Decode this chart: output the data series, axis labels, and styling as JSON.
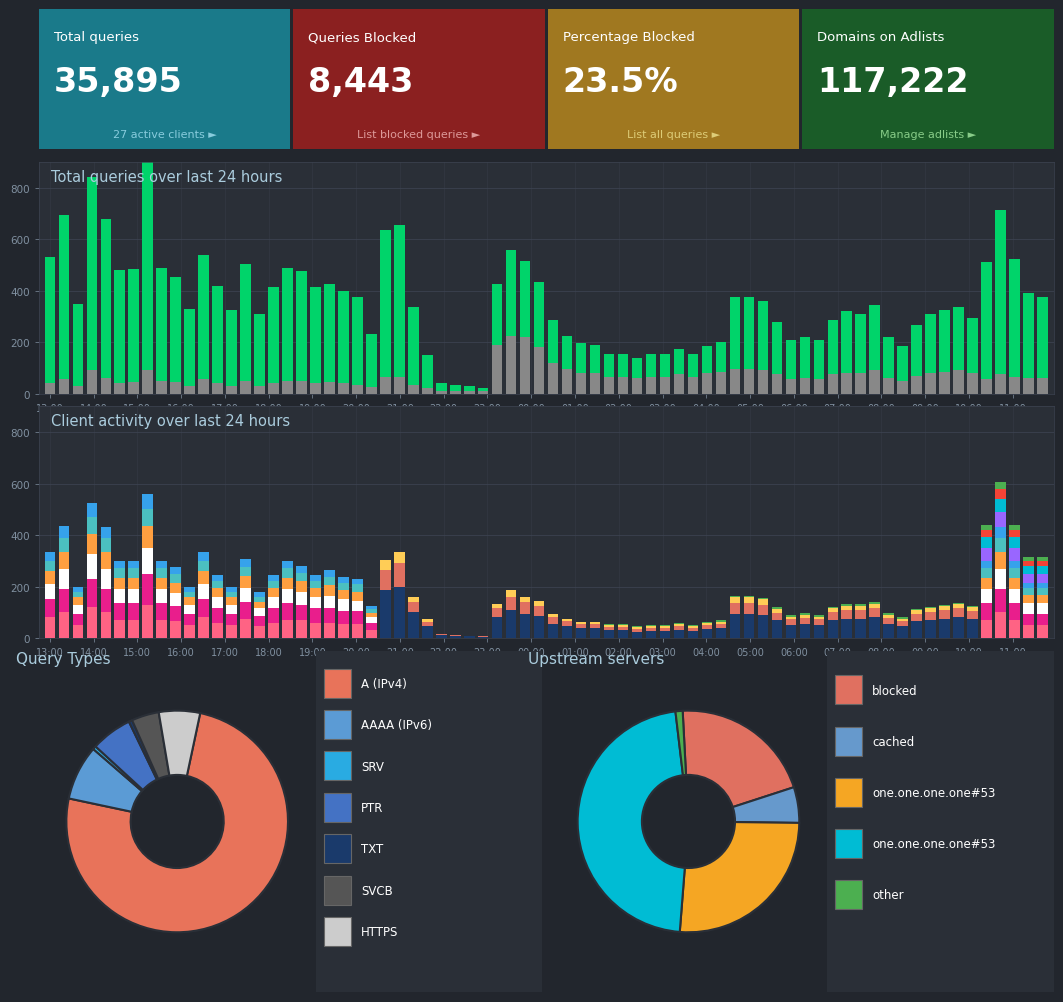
{
  "bg_color": "#22262d",
  "panel_bg": "#2d3139",
  "card_colors": [
    "#1a7a8a",
    "#8b2020",
    "#a07820",
    "#1a5c28"
  ],
  "card_titles": [
    "Total queries",
    "Queries Blocked",
    "Percentage Blocked",
    "Domains on Adlists"
  ],
  "card_values": [
    "35,895",
    "8,443",
    "23.5%",
    "117,222"
  ],
  "card_subtitles": [
    "27 active clients ►",
    "List blocked queries ►",
    "List all queries ►",
    "Manage adlists ►"
  ],
  "card_subtitle_colors": [
    "#88ccdd",
    "#dd9999",
    "#ddcc77",
    "#88cc88"
  ],
  "chart_bg": "#2a2f37",
  "chart_title1": "Total queries over last 24 hours",
  "chart_title2": "Client activity over last 24 hours",
  "x_labels": [
    "13:00",
    "14:00",
    "15:00",
    "16:00",
    "17:00",
    "18:00",
    "19:00",
    "20:00",
    "21:00",
    "22:00",
    "23:00",
    "00:00",
    "01:00",
    "02:00",
    "03:00",
    "04:00",
    "05:00",
    "06:00",
    "07:00",
    "08:00",
    "09:00",
    "10:00",
    "11:00"
  ],
  "total_green": [
    490,
    640,
    320,
    750,
    620,
    440,
    440,
    810,
    440,
    410,
    300,
    485,
    380,
    295,
    455,
    280,
    375,
    440,
    425,
    375,
    380,
    360,
    340,
    205,
    570,
    590,
    300,
    130,
    30,
    25,
    20,
    15,
    235,
    335,
    295,
    255,
    165,
    130,
    115,
    110,
    90,
    90,
    80,
    90,
    90,
    100,
    90,
    105,
    115,
    280,
    280,
    270,
    205,
    155,
    160,
    155,
    210,
    240,
    230,
    255,
    160,
    135,
    195,
    230,
    240,
    245,
    215,
    455,
    640,
    460,
    330,
    315
  ],
  "total_gray": [
    40,
    55,
    30,
    90,
    60,
    40,
    45,
    90,
    50,
    45,
    30,
    55,
    40,
    30,
    50,
    30,
    40,
    50,
    50,
    40,
    45,
    40,
    35,
    25,
    65,
    65,
    35,
    20,
    10,
    10,
    8,
    8,
    190,
    225,
    220,
    180,
    120,
    95,
    80,
    80,
    65,
    65,
    60,
    65,
    65,
    75,
    65,
    80,
    85,
    95,
    95,
    90,
    75,
    55,
    60,
    55,
    75,
    80,
    80,
    90,
    60,
    50,
    70,
    80,
    85,
    90,
    80,
    55,
    75,
    65,
    60,
    60
  ],
  "green_color": "#00d46a",
  "gray_color": "#888888",
  "client_data": {
    "pink": [
      80,
      100,
      50,
      120,
      100,
      70,
      70,
      130,
      70,
      65,
      50,
      80,
      60,
      50,
      75,
      45,
      60,
      70,
      70,
      60,
      60,
      55,
      55,
      30,
      0,
      0,
      0,
      0,
      0,
      0,
      0,
      0,
      0,
      0,
      0,
      0,
      0,
      0,
      0,
      0,
      0,
      0,
      0,
      0,
      0,
      0,
      0,
      0,
      0,
      0,
      0,
      0,
      0,
      0,
      0,
      0,
      0,
      0,
      0,
      0,
      0,
      0,
      0,
      0,
      0,
      0,
      0,
      70,
      100,
      70,
      50,
      50
    ],
    "magenta": [
      70,
      90,
      45,
      110,
      90,
      65,
      65,
      120,
      65,
      60,
      45,
      70,
      55,
      45,
      65,
      40,
      55,
      65,
      60,
      55,
      55,
      50,
      50,
      28,
      0,
      0,
      0,
      0,
      0,
      0,
      0,
      0,
      0,
      0,
      0,
      0,
      0,
      0,
      0,
      0,
      0,
      0,
      0,
      0,
      0,
      0,
      0,
      0,
      0,
      0,
      0,
      0,
      0,
      0,
      0,
      0,
      0,
      0,
      0,
      0,
      0,
      0,
      0,
      0,
      0,
      0,
      0,
      65,
      90,
      65,
      45,
      45
    ],
    "white": [
      60,
      80,
      35,
      95,
      80,
      55,
      55,
      100,
      55,
      50,
      35,
      60,
      45,
      35,
      55,
      30,
      45,
      55,
      50,
      45,
      50,
      45,
      40,
      22,
      0,
      0,
      0,
      0,
      0,
      0,
      0,
      0,
      0,
      0,
      0,
      0,
      0,
      0,
      0,
      0,
      0,
      0,
      0,
      0,
      0,
      0,
      0,
      0,
      0,
      0,
      0,
      0,
      0,
      0,
      0,
      0,
      0,
      0,
      0,
      0,
      0,
      0,
      0,
      0,
      0,
      0,
      0,
      55,
      80,
      55,
      40,
      40
    ],
    "orange": [
      50,
      65,
      28,
      80,
      65,
      45,
      45,
      85,
      45,
      40,
      28,
      50,
      35,
      28,
      45,
      25,
      35,
      45,
      40,
      35,
      40,
      35,
      35,
      18,
      0,
      0,
      0,
      0,
      0,
      0,
      0,
      0,
      0,
      0,
      0,
      0,
      0,
      0,
      0,
      0,
      0,
      0,
      0,
      0,
      0,
      0,
      0,
      0,
      0,
      0,
      0,
      0,
      0,
      0,
      0,
      0,
      0,
      0,
      0,
      0,
      0,
      0,
      0,
      0,
      0,
      0,
      0,
      45,
      65,
      45,
      32,
      32
    ],
    "teal": [
      40,
      55,
      22,
      65,
      52,
      36,
      36,
      68,
      36,
      32,
      22,
      40,
      28,
      22,
      36,
      20,
      28,
      36,
      32,
      28,
      32,
      28,
      28,
      14,
      0,
      0,
      0,
      0,
      0,
      0,
      0,
      0,
      0,
      0,
      0,
      0,
      0,
      0,
      0,
      0,
      0,
      0,
      0,
      0,
      0,
      0,
      0,
      0,
      0,
      0,
      0,
      0,
      0,
      0,
      0,
      0,
      0,
      0,
      0,
      0,
      0,
      0,
      0,
      0,
      0,
      0,
      0,
      36,
      52,
      36,
      26,
      26
    ],
    "blue": [
      35,
      45,
      18,
      55,
      44,
      30,
      30,
      58,
      30,
      27,
      18,
      33,
      23,
      18,
      30,
      17,
      23,
      30,
      27,
      23,
      27,
      23,
      23,
      12,
      0,
      0,
      0,
      0,
      0,
      0,
      0,
      0,
      0,
      0,
      0,
      0,
      0,
      0,
      0,
      0,
      0,
      0,
      0,
      0,
      0,
      0,
      0,
      0,
      0,
      0,
      0,
      0,
      0,
      0,
      0,
      0,
      0,
      0,
      0,
      0,
      0,
      0,
      0,
      0,
      0,
      0,
      0,
      30,
      44,
      30,
      22,
      22
    ],
    "navy": [
      0,
      0,
      0,
      0,
      0,
      0,
      0,
      0,
      0,
      0,
      0,
      0,
      0,
      0,
      0,
      0,
      0,
      0,
      0,
      0,
      0,
      0,
      0,
      0,
      185,
      200,
      100,
      45,
      10,
      8,
      6,
      5,
      80,
      110,
      95,
      85,
      55,
      45,
      38,
      38,
      30,
      30,
      25,
      28,
      28,
      32,
      28,
      35,
      38,
      95,
      95,
      90,
      68,
      50,
      55,
      50,
      70,
      75,
      75,
      80,
      55,
      45,
      65,
      70,
      75,
      80,
      72,
      0,
      0,
      0,
      0,
      0
    ],
    "salmon": [
      0,
      0,
      0,
      0,
      0,
      0,
      0,
      0,
      0,
      0,
      0,
      0,
      0,
      0,
      0,
      0,
      0,
      0,
      0,
      0,
      0,
      0,
      0,
      0,
      80,
      90,
      40,
      18,
      4,
      3,
      2,
      2,
      35,
      50,
      43,
      38,
      25,
      20,
      17,
      17,
      13,
      13,
      11,
      12,
      12,
      14,
      12,
      15,
      17,
      42,
      42,
      40,
      30,
      22,
      24,
      22,
      31,
      33,
      33,
      35,
      24,
      20,
      28,
      31,
      33,
      35,
      32,
      0,
      0,
      0,
      0,
      0
    ],
    "yellow": [
      0,
      0,
      0,
      0,
      0,
      0,
      0,
      0,
      0,
      0,
      0,
      0,
      0,
      0,
      0,
      0,
      0,
      0,
      0,
      0,
      0,
      0,
      0,
      0,
      40,
      45,
      20,
      9,
      2,
      2,
      1,
      1,
      17,
      25,
      21,
      19,
      12,
      10,
      8,
      8,
      6,
      6,
      5,
      6,
      6,
      7,
      6,
      7,
      8,
      21,
      21,
      20,
      15,
      11,
      12,
      11,
      15,
      17,
      17,
      18,
      12,
      10,
      14,
      15,
      17,
      17,
      16,
      0,
      0,
      0,
      0,
      0
    ],
    "purple": [
      0,
      0,
      0,
      0,
      0,
      0,
      0,
      0,
      0,
      0,
      0,
      0,
      0,
      0,
      0,
      0,
      0,
      0,
      0,
      0,
      0,
      0,
      0,
      0,
      0,
      0,
      0,
      0,
      0,
      0,
      0,
      0,
      0,
      0,
      0,
      0,
      0,
      0,
      0,
      0,
      0,
      0,
      0,
      0,
      0,
      0,
      0,
      0,
      0,
      0,
      0,
      0,
      0,
      0,
      0,
      0,
      0,
      0,
      0,
      0,
      0,
      0,
      0,
      0,
      0,
      0,
      0,
      50,
      60,
      50,
      35,
      35
    ],
    "cyan": [
      0,
      0,
      0,
      0,
      0,
      0,
      0,
      0,
      0,
      0,
      0,
      0,
      0,
      0,
      0,
      0,
      0,
      0,
      0,
      0,
      0,
      0,
      0,
      0,
      0,
      0,
      0,
      0,
      0,
      0,
      0,
      0,
      0,
      0,
      0,
      0,
      0,
      0,
      0,
      0,
      0,
      0,
      0,
      0,
      0,
      0,
      0,
      0,
      0,
      0,
      0,
      0,
      0,
      0,
      0,
      0,
      0,
      0,
      0,
      0,
      0,
      0,
      0,
      0,
      0,
      0,
      0,
      40,
      50,
      40,
      28,
      28
    ],
    "red": [
      0,
      0,
      0,
      0,
      0,
      0,
      0,
      0,
      0,
      0,
      0,
      0,
      0,
      0,
      0,
      0,
      0,
      0,
      0,
      0,
      0,
      0,
      0,
      0,
      0,
      0,
      0,
      0,
      0,
      0,
      0,
      0,
      0,
      0,
      0,
      0,
      0,
      0,
      0,
      0,
      0,
      0,
      0,
      0,
      0,
      0,
      0,
      0,
      0,
      0,
      0,
      0,
      0,
      0,
      0,
      0,
      0,
      0,
      0,
      0,
      0,
      0,
      0,
      0,
      0,
      0,
      0,
      30,
      40,
      30,
      21,
      21
    ],
    "green2": [
      0,
      0,
      0,
      0,
      0,
      0,
      0,
      0,
      0,
      0,
      0,
      0,
      0,
      0,
      0,
      0,
      0,
      0,
      0,
      0,
      0,
      0,
      0,
      0,
      0,
      0,
      0,
      0,
      0,
      0,
      0,
      0,
      0,
      0,
      0,
      0,
      0,
      0,
      0,
      0,
      5,
      5,
      5,
      5,
      5,
      5,
      5,
      6,
      6,
      6,
      6,
      6,
      6,
      6,
      6,
      6,
      6,
      6,
      6,
      6,
      5,
      5,
      5,
      5,
      5,
      5,
      5,
      20,
      25,
      20,
      15,
      15
    ]
  },
  "client_colors_map": {
    "pink": "#ff6384",
    "magenta": "#e91e8c",
    "white": "#ffffff",
    "orange": "#ff9f40",
    "teal": "#4bc0c0",
    "blue": "#36a2eb",
    "navy": "#1a3a6b",
    "salmon": "#e07060",
    "yellow": "#ffcd56",
    "purple": "#9966ff",
    "cyan": "#00bcd4",
    "red": "#f44336",
    "green2": "#4caf50"
  },
  "pie1_title": "Query Types",
  "pie1_labels": [
    "A (IPv4)",
    "AAAA (IPv6)",
    "SRV",
    "PTR",
    "TXT",
    "SVCB",
    "HTTPS"
  ],
  "pie1_values": [
    75,
    8,
    0.5,
    6,
    0.5,
    4,
    6
  ],
  "pie1_colors": [
    "#e8735a",
    "#5b9bd5",
    "#29abe2",
    "#4472c4",
    "#1a3a6b",
    "#555555",
    "#cccccc"
  ],
  "pie1_legend_colors": [
    "#e8735a",
    "#5b9bd5",
    "#29abe2",
    "#4472c4",
    "#1a3a6b",
    "#555555",
    "#cccccc"
  ],
  "pie2_title": "Upstream servers",
  "pie2_labels": [
    "blocked",
    "cached",
    "one.one.one.one#53",
    "one.one.one.one#53",
    "other"
  ],
  "pie2_values": [
    20,
    5,
    25,
    45,
    1
  ],
  "pie2_colors": [
    "#e8735a",
    "#5b9bd5",
    "#5b9bd5",
    "#f5a623",
    "#00bcd4",
    "#4caf50"
  ],
  "upstream_colors": [
    "#e07060",
    "#6699cc",
    "#f5a623",
    "#00bcd4",
    "#4caf50"
  ],
  "text_color": "#ffffff",
  "grid_color": "#3d4452",
  "tick_color": "#8090a0",
  "title_color": "#aaccdd"
}
